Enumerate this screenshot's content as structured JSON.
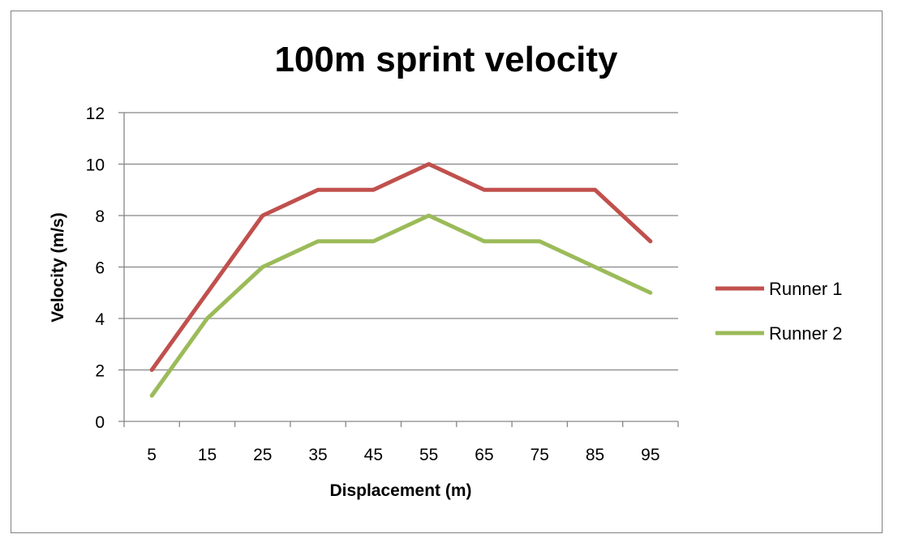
{
  "chart_data": {
    "type": "line",
    "title": "100m sprint velocity",
    "xlabel": "Displacement (m)",
    "ylabel": "Velocity (m/s)",
    "categories": [
      "5",
      "15",
      "25",
      "35",
      "45",
      "55",
      "65",
      "75",
      "85",
      "95"
    ],
    "ylim": [
      0,
      12
    ],
    "yticks": [
      "0",
      "2",
      "4",
      "6",
      "8",
      "10",
      "12"
    ],
    "grid": true,
    "legend_position": "right",
    "series": [
      {
        "name": "Runner 1",
        "color": "#c0504d",
        "values": [
          2,
          5,
          8,
          9,
          9,
          10,
          9,
          9,
          9,
          7
        ]
      },
      {
        "name": "Runner 2",
        "color": "#9bbb59",
        "values": [
          1,
          4,
          6,
          7,
          7,
          8,
          7,
          7,
          6,
          5
        ]
      }
    ]
  }
}
